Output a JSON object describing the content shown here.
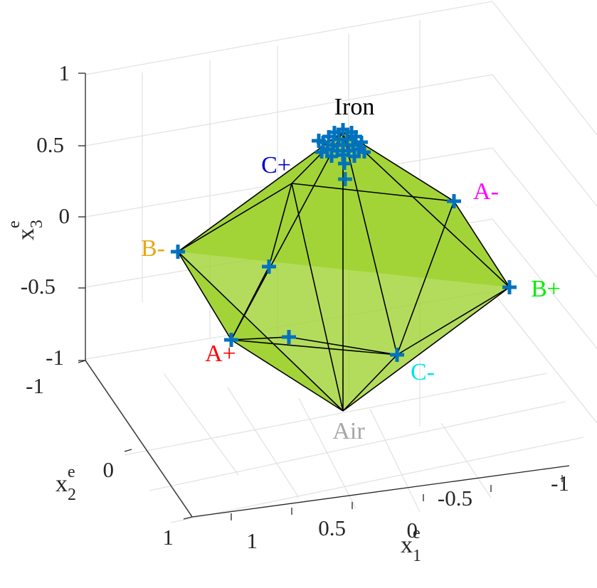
{
  "chart_data": {
    "type": "scatter3d",
    "title": "",
    "axes": {
      "x1": {
        "label": "x",
        "superscript": "e",
        "subscript": "1",
        "ticks": [
          "1",
          "0.5",
          "0",
          "-0.5",
          "-1"
        ]
      },
      "x2": {
        "label": "x",
        "superscript": "e",
        "subscript": "2",
        "ticks": [
          "-1",
          "0",
          "1"
        ]
      },
      "x3": {
        "label": "x",
        "superscript": "e",
        "subscript": "3",
        "ticks": [
          "1",
          "0.5",
          "0",
          "-0.5",
          "-1"
        ]
      }
    },
    "grid": true,
    "face_color": "#9dd22e",
    "edge_color": "#000000",
    "marker_color": "#0072bd",
    "marker": "+",
    "vertices": [
      {
        "name": "Iron",
        "label_color": "#000000"
      },
      {
        "name": "C+",
        "label_color": "#0000cc"
      },
      {
        "name": "A-",
        "label_color": "#ff00ff"
      },
      {
        "name": "B-",
        "label_color": "#e6a817"
      },
      {
        "name": "B+",
        "label_color": "#00ee00"
      },
      {
        "name": "A+",
        "label_color": "#ff0000"
      },
      {
        "name": "C-",
        "label_color": "#00e5e5"
      },
      {
        "name": "Air",
        "label_color": "#a6a6a6"
      }
    ]
  }
}
